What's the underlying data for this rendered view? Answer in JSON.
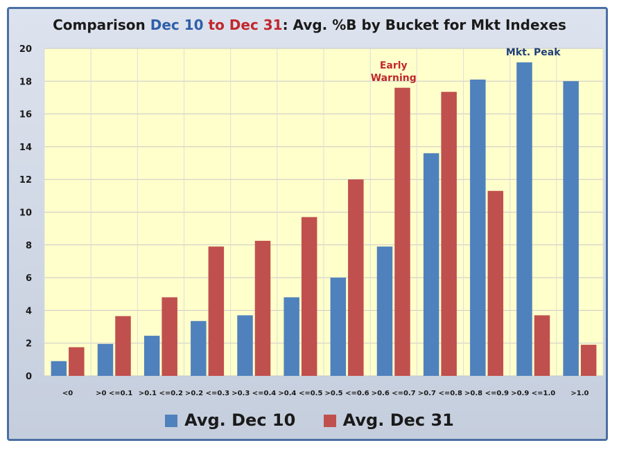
{
  "chart_data": {
    "type": "bar",
    "title_parts": [
      "Comparison ",
      "Dec 10",
      " to Dec 31",
      ": Avg. %B by Bucket for Mkt Indexes"
    ],
    "categories": [
      "<0",
      ">0 <=0.1",
      ">0.1 <=0.2",
      ">0.2 <=0.3",
      ">0.3 <=0.4",
      ">0.4 <=0.5",
      ">0.5 <=0.6",
      ">0.6 <=0.7",
      ">0.7 <=0.8",
      ">0.8 <=0.9",
      ">0.9 <=1.0",
      ">1.0"
    ],
    "series": [
      {
        "name": "Avg. Dec 10",
        "color": "#4f81bd",
        "values": [
          0.9,
          1.95,
          2.45,
          3.35,
          3.7,
          4.8,
          6.0,
          7.9,
          13.6,
          18.1,
          19.15,
          18.0
        ]
      },
      {
        "name": "Avg. Dec 31",
        "color": "#c0504d",
        "values": [
          1.75,
          3.65,
          4.8,
          7.9,
          8.25,
          9.7,
          12.0,
          17.6,
          17.35,
          11.3,
          3.7,
          1.9
        ]
      }
    ],
    "ylim": [
      0,
      20
    ],
    "yticks": [
      0,
      2,
      4,
      6,
      8,
      10,
      12,
      14,
      16,
      18,
      20
    ],
    "grid": true,
    "legend_position": "bottom",
    "annotations": [
      {
        "lines": [
          "Early",
          "Warning"
        ],
        "category_index": 7,
        "color": "#c0282d"
      },
      {
        "lines": [
          "Mkt. Peak"
        ],
        "category_index": 10,
        "color": "#1f3f7a"
      }
    ]
  }
}
